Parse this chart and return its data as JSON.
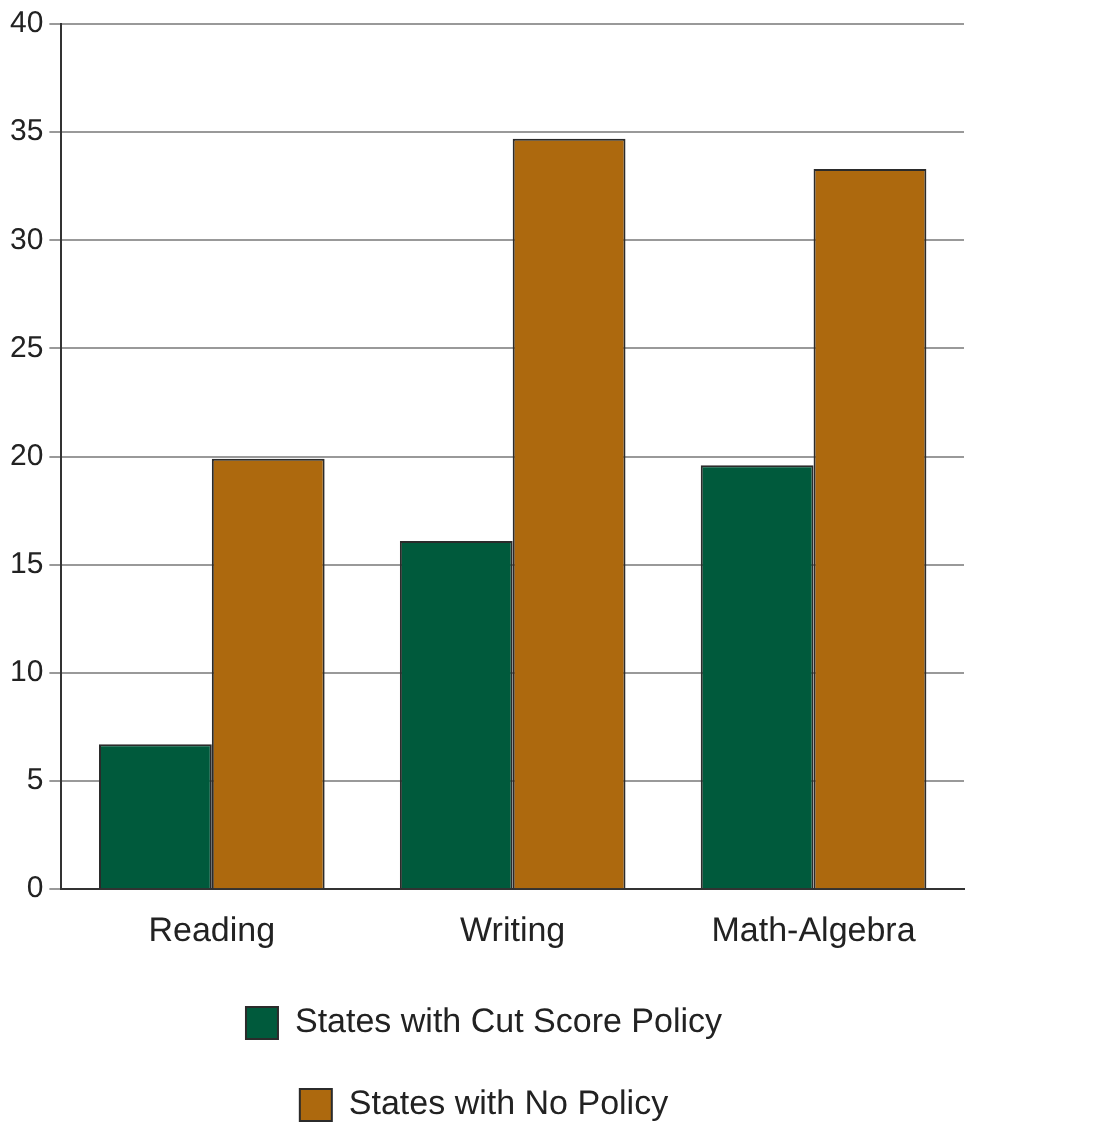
{
  "chart_data": {
    "type": "bar",
    "categories": [
      "Reading",
      "Writing",
      "Math-Algebra"
    ],
    "series": [
      {
        "name": "States with Cut Score Policy",
        "color": "#005a3c",
        "values": [
          6.7,
          16.1,
          19.6
        ]
      },
      {
        "name": "States with No Policy",
        "color": "#ad690e",
        "values": [
          19.9,
          34.7,
          33.3
        ]
      }
    ],
    "ylim": [
      0,
      40
    ],
    "yticks": [
      0,
      5,
      10,
      15,
      20,
      25,
      30,
      35,
      40
    ],
    "grid": "y",
    "legend": "bottom"
  }
}
